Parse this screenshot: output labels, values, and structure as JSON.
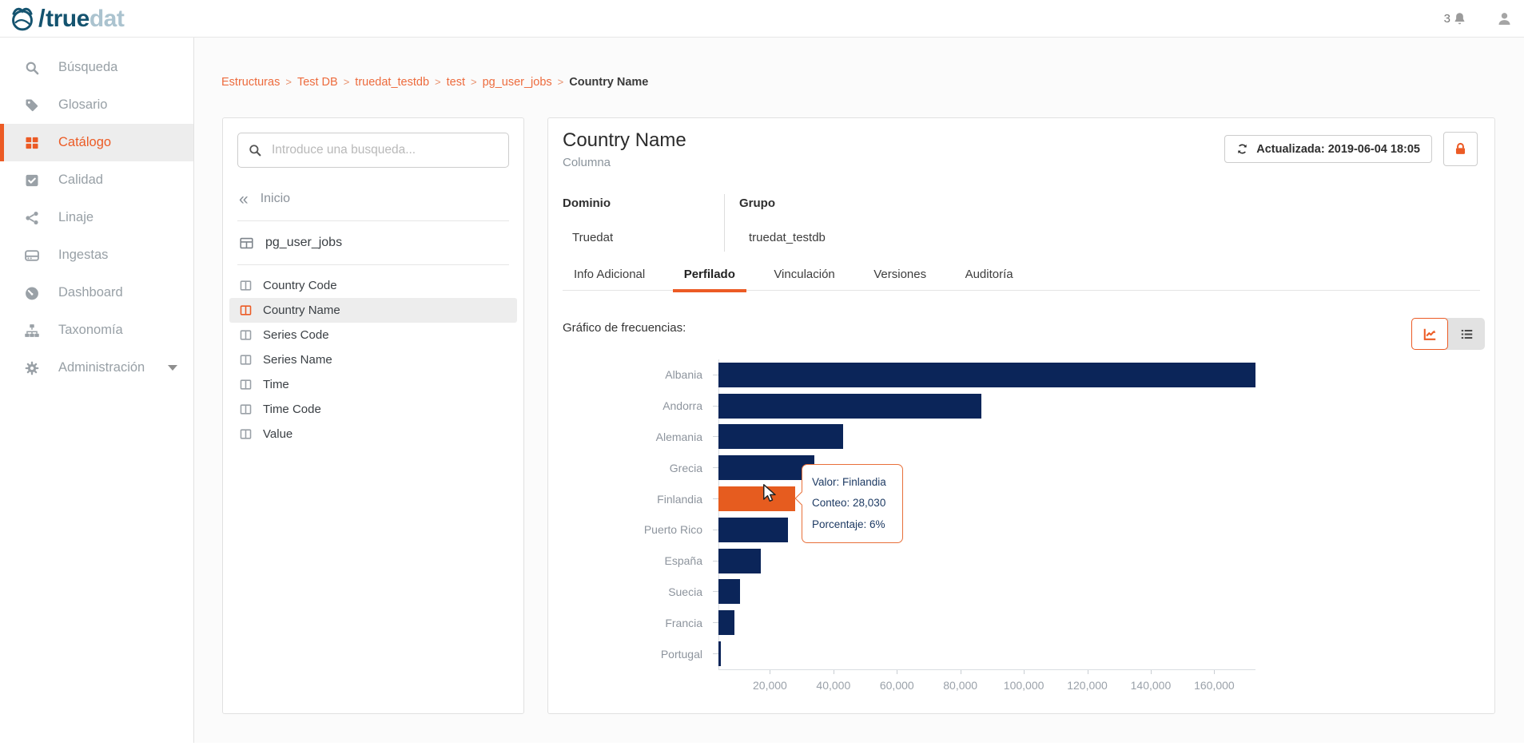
{
  "header": {
    "logo": {
      "slash": "/",
      "primary": "true",
      "secondary": "dat"
    },
    "notifications_count": "3"
  },
  "sidebar": {
    "items": [
      {
        "label": "Búsqueda",
        "icon": "search",
        "active": false
      },
      {
        "label": "Glosario",
        "icon": "tags",
        "active": false
      },
      {
        "label": "Catálogo",
        "icon": "grid",
        "active": true
      },
      {
        "label": "Calidad",
        "icon": "check-square",
        "active": false
      },
      {
        "label": "Linaje",
        "icon": "share",
        "active": false
      },
      {
        "label": "Ingestas",
        "icon": "server",
        "active": false
      },
      {
        "label": "Dashboard",
        "icon": "gauge",
        "active": false
      },
      {
        "label": "Taxonomía",
        "icon": "sitemap",
        "active": false
      },
      {
        "label": "Administración",
        "icon": "gear",
        "active": false,
        "has_caret": true
      }
    ]
  },
  "breadcrumb": {
    "items": [
      "Estructuras",
      "Test DB",
      "truedat_testdb",
      "test",
      "pg_user_jobs"
    ],
    "current": "Country Name",
    "separator": ">"
  },
  "explorer": {
    "search_placeholder": "Introduce una busqueda...",
    "home_label": "Inicio",
    "table_name": "pg_user_jobs",
    "columns": [
      {
        "name": "Country Code",
        "selected": false
      },
      {
        "name": "Country Name",
        "selected": true
      },
      {
        "name": "Series Code",
        "selected": false
      },
      {
        "name": "Series Name",
        "selected": false
      },
      {
        "name": "Time",
        "selected": false
      },
      {
        "name": "Time Code",
        "selected": false
      },
      {
        "name": "Value",
        "selected": false
      }
    ]
  },
  "detail": {
    "title": "Country Name",
    "type_label": "Columna",
    "updated_label": "Actualizada: 2019-06-04 18:05",
    "fields": [
      {
        "label": "Dominio",
        "value": "Truedat"
      },
      {
        "label": "Grupo",
        "value": "truedat_testdb"
      }
    ],
    "tabs": [
      {
        "label": "Info Adicional",
        "active": false
      },
      {
        "label": "Perfilado",
        "active": true
      },
      {
        "label": "Vinculación",
        "active": false
      },
      {
        "label": "Versiones",
        "active": false
      },
      {
        "label": "Auditoría",
        "active": false
      }
    ],
    "section_label": "Gráfico de frecuencias:"
  },
  "tooltip": {
    "lines": [
      "Valor: Finlandia",
      "Conteo: 28,030",
      "Porcentaje: 6%"
    ]
  },
  "chart_data": {
    "type": "bar",
    "orientation": "horizontal",
    "categories": [
      "Albania",
      "Andorra",
      "Alemania",
      "Grecia",
      "Finlandia",
      "Puerto Rico",
      "España",
      "Suecia",
      "Francia",
      "Portugal"
    ],
    "values": [
      173000,
      86500,
      43000,
      34000,
      28030,
      25700,
      17100,
      10600,
      8800,
      4500
    ],
    "highlight_category": "Finlandia",
    "highlight": {
      "valor": "Finlandia",
      "conteo": "28,030",
      "porcentaje": "6%"
    },
    "x_ticks": [
      {
        "label": "20,000",
        "value": 20000
      },
      {
        "label": "40,000",
        "value": 40000
      },
      {
        "label": "60,000",
        "value": 60000
      },
      {
        "label": "80,000",
        "value": 80000
      },
      {
        "label": "100,000",
        "value": 100000
      },
      {
        "label": "120,000",
        "value": 120000
      },
      {
        "label": "140,000",
        "value": 140000
      },
      {
        "label": "160,000",
        "value": 160000
      }
    ],
    "xlim": [
      0,
      173000
    ],
    "xlabel": "",
    "ylabel": "",
    "grid": false,
    "legend": false,
    "colors": {
      "bar": "#0B2559",
      "highlight": "#E65C1F"
    }
  },
  "colors": {
    "accent_orange": "#EC5B25",
    "bar_navy": "#0B2559",
    "highlight_orange": "#E65C1F",
    "link_orange": "#ED6B3D",
    "logo_navy": "#14536F",
    "logo_light": "#ABC3CF"
  }
}
